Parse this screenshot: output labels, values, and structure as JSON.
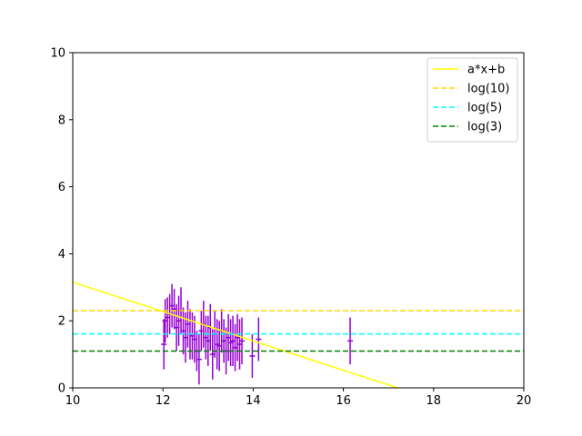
{
  "chart_data": {
    "type": "scatter",
    "title": "",
    "xlabel": "",
    "ylabel": "",
    "xlim": [
      10,
      20
    ],
    "ylim": [
      0,
      10
    ],
    "xticks": [
      "10",
      "12",
      "14",
      "16",
      "18",
      "20"
    ],
    "yticks": [
      "0",
      "2",
      "4",
      "6",
      "8",
      "10"
    ],
    "grid": false,
    "legend_position": "top-right",
    "errorbar_color": "#9400D3",
    "series": [
      {
        "kind": "errorbar",
        "color": "#9400D3",
        "points": [
          {
            "x": 12.02,
            "y": 1.3,
            "err": 0.75
          },
          {
            "x": 12.05,
            "y": 2.0,
            "err": 0.65
          },
          {
            "x": 12.1,
            "y": 2.1,
            "err": 0.6
          },
          {
            "x": 12.15,
            "y": 2.2,
            "err": 0.6
          },
          {
            "x": 12.2,
            "y": 2.45,
            "err": 0.65
          },
          {
            "x": 12.25,
            "y": 2.35,
            "err": 0.6
          },
          {
            "x": 12.3,
            "y": 1.8,
            "err": 0.7
          },
          {
            "x": 12.35,
            "y": 2.0,
            "err": 0.75
          },
          {
            "x": 12.4,
            "y": 2.3,
            "err": 0.7
          },
          {
            "x": 12.45,
            "y": 1.7,
            "err": 0.7
          },
          {
            "x": 12.5,
            "y": 1.5,
            "err": 0.75
          },
          {
            "x": 12.55,
            "y": 1.9,
            "err": 0.7
          },
          {
            "x": 12.6,
            "y": 1.6,
            "err": 0.75
          },
          {
            "x": 12.65,
            "y": 1.55,
            "err": 0.7
          },
          {
            "x": 12.7,
            "y": 1.45,
            "err": 0.7
          },
          {
            "x": 12.75,
            "y": 1.1,
            "err": 0.6
          },
          {
            "x": 12.8,
            "y": 0.85,
            "err": 0.75
          },
          {
            "x": 12.85,
            "y": 1.7,
            "err": 0.6
          },
          {
            "x": 12.9,
            "y": 1.9,
            "err": 0.7
          },
          {
            "x": 12.95,
            "y": 1.5,
            "err": 0.65
          },
          {
            "x": 13.0,
            "y": 1.4,
            "err": 0.75
          },
          {
            "x": 13.05,
            "y": 1.8,
            "err": 0.7
          },
          {
            "x": 13.1,
            "y": 1.0,
            "err": 0.75
          },
          {
            "x": 13.15,
            "y": 1.6,
            "err": 0.7
          },
          {
            "x": 13.2,
            "y": 1.3,
            "err": 0.75
          },
          {
            "x": 13.25,
            "y": 1.25,
            "err": 0.75
          },
          {
            "x": 13.3,
            "y": 1.7,
            "err": 0.65
          },
          {
            "x": 13.35,
            "y": 1.4,
            "err": 0.65
          },
          {
            "x": 13.4,
            "y": 1.1,
            "err": 0.7
          },
          {
            "x": 13.45,
            "y": 1.5,
            "err": 0.7
          },
          {
            "x": 13.5,
            "y": 1.35,
            "err": 0.7
          },
          {
            "x": 13.55,
            "y": 1.4,
            "err": 0.75
          },
          {
            "x": 13.6,
            "y": 1.2,
            "err": 0.7
          },
          {
            "x": 13.65,
            "y": 1.5,
            "err": 0.7
          },
          {
            "x": 13.7,
            "y": 1.3,
            "err": 0.75
          },
          {
            "x": 13.75,
            "y": 1.4,
            "err": 0.7
          },
          {
            "x": 13.98,
            "y": 0.95,
            "err": 0.65
          },
          {
            "x": 14.12,
            "y": 1.45,
            "err": 0.65
          },
          {
            "x": 16.15,
            "y": 1.4,
            "err": 0.7
          }
        ]
      },
      {
        "name": "a*x+b",
        "kind": "line",
        "style": "solid",
        "color": "#FFFF00",
        "x": [
          10,
          17.2
        ],
        "y": [
          3.15,
          0
        ]
      },
      {
        "name": "log(10)",
        "kind": "hline",
        "style": "dashed",
        "color": "#FFD700",
        "y": 2.303
      },
      {
        "name": "log(5)",
        "kind": "hline",
        "style": "dashed",
        "color": "#00FFFF",
        "y": 1.609
      },
      {
        "name": "log(3)",
        "kind": "hline",
        "style": "dashed",
        "color": "#008000",
        "y": 1.099
      }
    ]
  }
}
